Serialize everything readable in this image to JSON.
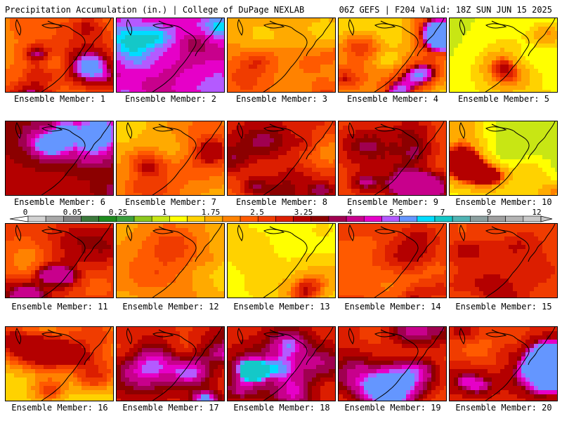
{
  "header": {
    "left_title": "Precipitation Accumulation (in.) | College of DuPage NEXLAB",
    "right_title": "06Z GEFS | F204 Valid: 18Z SUN JUN 15 2025"
  },
  "colorbar": {
    "tick_labels": [
      "0",
      "0.05",
      "0.25",
      "1",
      "1.75",
      "2.5",
      "3.25",
      "4",
      "5.5",
      "7",
      "9",
      "12"
    ],
    "colors": [
      "#d2d2d2",
      "#a8a8a8",
      "#828282",
      "#3c7a3c",
      "#1e8c1e",
      "#3ca03c",
      "#8cc81e",
      "#c8e614",
      "#ffff00",
      "#ffd200",
      "#ffaa00",
      "#ff8200",
      "#ff5a00",
      "#f03c00",
      "#dc1e00",
      "#b40000",
      "#8c0000",
      "#a00050",
      "#c8008c",
      "#e600c8",
      "#b45aff",
      "#6496ff",
      "#00dcff",
      "#14c8c8",
      "#50b4b4",
      "#8ca0a0",
      "#a0a0a0",
      "#b4b4b4",
      "#c8c8c8"
    ]
  },
  "chart_data": {
    "type": "heatmap",
    "title": "Precipitation Accumulation (in.) | College of DuPage NEXLAB",
    "subtitle": "06Z GEFS | F204 Valid: 18Z SUN JUN 15 2025",
    "colorbar_ticks": [
      0,
      0.05,
      0.25,
      1,
      1.75,
      2.5,
      3.25,
      4,
      5.5,
      7,
      9,
      12
    ],
    "panels": [
      {
        "member": 1,
        "label": "Ensemble Member: 1",
        "dominant_range": [
          1,
          3.25
        ],
        "max_approx": 5.5
      },
      {
        "member": 2,
        "label": "Ensemble Member: 2",
        "dominant_range": [
          2.5,
          5.5
        ],
        "max_approx": 7
      },
      {
        "member": 3,
        "label": "Ensemble Member: 3",
        "dominant_range": [
          1,
          2.5
        ],
        "max_approx": 5.5
      },
      {
        "member": 4,
        "label": "Ensemble Member: 4",
        "dominant_range": [
          0.25,
          2.5
        ],
        "max_approx": 5.5
      },
      {
        "member": 5,
        "label": "Ensemble Member: 5",
        "dominant_range": [
          0.25,
          1.75
        ],
        "max_approx": 3.25
      },
      {
        "member": 6,
        "label": "Ensemble Member: 6",
        "dominant_range": [
          2.5,
          4
        ],
        "max_approx": 5.5
      },
      {
        "member": 7,
        "label": "Ensemble Member: 7",
        "dominant_range": [
          1,
          2.5
        ],
        "max_approx": 3.25
      },
      {
        "member": 8,
        "label": "Ensemble Member: 8",
        "dominant_range": [
          1.75,
          4
        ],
        "max_approx": 7
      },
      {
        "member": 9,
        "label": "Ensemble Member: 9",
        "dominant_range": [
          1.75,
          3.25
        ],
        "max_approx": 4
      },
      {
        "member": 10,
        "label": "Ensemble Member: 10",
        "dominant_range": [
          0.25,
          1.75
        ],
        "max_approx": 3.25
      },
      {
        "member": 11,
        "label": "Ensemble Member: 11",
        "dominant_range": [
          1.75,
          3.25
        ],
        "max_approx": 4
      },
      {
        "member": 12,
        "label": "Ensemble Member: 12",
        "dominant_range": [
          1,
          2.5
        ],
        "max_approx": 3.25
      },
      {
        "member": 13,
        "label": "Ensemble Member: 13",
        "dominant_range": [
          0.25,
          1.75
        ],
        "max_approx": 3.25
      },
      {
        "member": 14,
        "label": "Ensemble Member: 14",
        "dominant_range": [
          1.75,
          3.25
        ],
        "max_approx": 5.5
      },
      {
        "member": 15,
        "label": "Ensemble Member: 15",
        "dominant_range": [
          1.75,
          3.25
        ],
        "max_approx": 4
      },
      {
        "member": 16,
        "label": "Ensemble Member: 16",
        "dominant_range": [
          0.25,
          2.5
        ],
        "max_approx": 3.25
      },
      {
        "member": 17,
        "label": "Ensemble Member: 17",
        "dominant_range": [
          1.75,
          4
        ],
        "max_approx": 5.5
      },
      {
        "member": 18,
        "label": "Ensemble Member: 18",
        "dominant_range": [
          1.75,
          4
        ],
        "max_approx": 7
      },
      {
        "member": 19,
        "label": "Ensemble Member: 19",
        "dominant_range": [
          1,
          4
        ],
        "max_approx": 5.5
      },
      {
        "member": 20,
        "label": "Ensemble Member: 20",
        "dominant_range": [
          1.75,
          3.25
        ],
        "max_approx": 5.5
      }
    ]
  }
}
